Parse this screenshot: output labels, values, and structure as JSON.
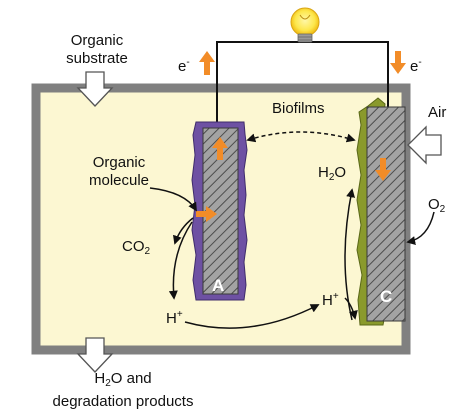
{
  "labels": {
    "organic_substrate_line1": "Organic",
    "organic_substrate_line2": "substrate",
    "e_minus_left": "e",
    "e_minus_right": "e",
    "e_sup": "-",
    "biofilms": "Biofilms",
    "air": "Air",
    "water_prefix": "H",
    "water_sub": "2",
    "water_suffix": "O",
    "organic_molecule_line1": "Organic",
    "organic_molecule_line2": "molecule",
    "co2_prefix": "CO",
    "co2_sub": "2",
    "o2_prefix": "O",
    "o2_sub": "2",
    "h_plus_left": "H",
    "h_plus_right": "H",
    "h_sup": "+",
    "anode_letter": "A",
    "cathode_letter": "C",
    "products_line1_prefix": "H",
    "products_line1_sub": "2",
    "products_line1_suffix": "O and",
    "products_line2": "degradation products"
  },
  "colors": {
    "chamber_fill": "#fcf7d2",
    "chamber_border": "#808080",
    "anode_biofilm": "#6e51a3",
    "cathode_biofilm": "#8a9a2c",
    "electrode_fill": "#9c9c9c",
    "electron_arrow": "#f28c28",
    "bulb_glow": "#fde74c"
  },
  "icons": {
    "bulb": "light-bulb-icon",
    "inflow_arrow": "down-arrow-icon",
    "air_arrow": "left-arrow-icon"
  }
}
